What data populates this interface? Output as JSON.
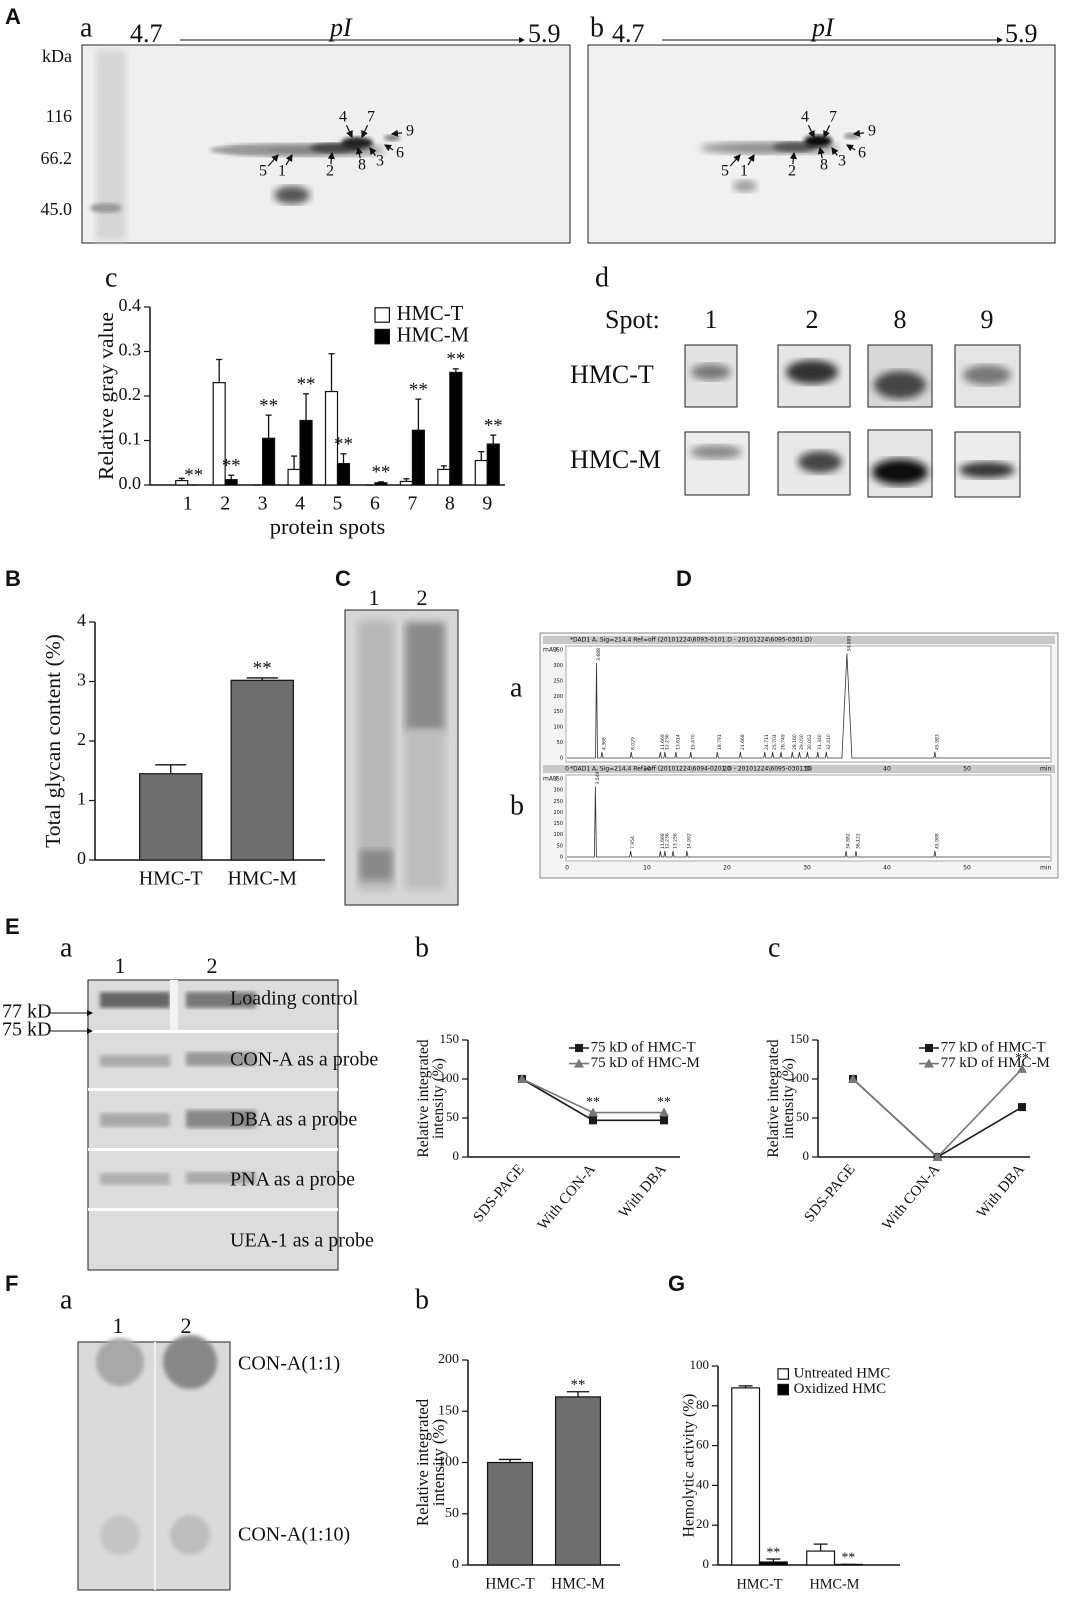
{
  "chart_data": [
    {
      "type": "bar",
      "categories": [
        "1",
        "2",
        "3",
        "4",
        "5",
        "6",
        "7",
        "8",
        "9"
      ],
      "series": [
        {
          "name": "HMC-T",
          "color": "#ffffff",
          "values": [
            0.01,
            0.23,
            0,
            0.035,
            0.21,
            0,
            0.008,
            0.035,
            0.055
          ],
          "errors": [
            0.005,
            0.052,
            0,
            0.03,
            0.085,
            0,
            0.006,
            0.008,
            0.02
          ]
        },
        {
          "name": "HMC-M",
          "color": "#000000",
          "values": [
            0,
            0.012,
            0.105,
            0.145,
            0.048,
            0.005,
            0.123,
            0.253,
            0.092
          ],
          "errors": [
            0,
            0.01,
            0.052,
            0.06,
            0.022,
            0.002,
            0.07,
            0.008,
            0.02
          ]
        }
      ],
      "ylim": [
        0,
        0.4
      ],
      "yticks": [
        {
          "value": 0,
          "label": "0.0"
        },
        0.1,
        0.2,
        0.3,
        0.4
      ],
      "ylabel": "Relative gray value",
      "xlabel": "protein spots",
      "legend": "upper right",
      "annotations": [
        {
          "text": "**",
          "category": "1",
          "series": "HMC-M"
        },
        {
          "text": "**",
          "category": "2",
          "series": "HMC-M"
        },
        {
          "text": "**",
          "category": "3",
          "series": "HMC-M"
        },
        {
          "text": "**",
          "category": "4",
          "series": "HMC-M"
        },
        {
          "text": "**",
          "category": "5",
          "series": "HMC-M"
        },
        {
          "text": "**",
          "category": "6",
          "series": "HMC-M"
        },
        {
          "text": "**",
          "category": "7",
          "series": "HMC-M"
        },
        {
          "text": "**",
          "category": "8",
          "series": "HMC-M"
        },
        {
          "text": "**",
          "category": "9",
          "series": "HMC-M"
        }
      ]
    },
    {
      "type": "bar",
      "categories": [
        "HMC-T",
        "HMC-M"
      ],
      "values": [
        1.45,
        3.02
      ],
      "errors": [
        0.15,
        0.04
      ],
      "color": "#6e6e6e",
      "ylim": [
        0,
        4
      ],
      "yticks": [
        0,
        1,
        2,
        3,
        4
      ],
      "ylabel": "Total glycan content (%)",
      "annotations": [
        {
          "text": "**",
          "category": "HMC-M"
        }
      ]
    },
    {
      "type": "line",
      "categories": [
        "SDS-PAGE",
        "With CON-A",
        "With DBA"
      ],
      "series": [
        {
          "name": "75 kD of HMC-T",
          "color": "#1a1a1a",
          "marker": "square",
          "values": [
            100,
            47,
            47
          ]
        },
        {
          "name": "75 kD of HMC-M",
          "color": "#777777",
          "marker": "triangle",
          "values": [
            100,
            57,
            57
          ]
        }
      ],
      "ylim": [
        0,
        150
      ],
      "yticks": [
        0,
        50,
        100,
        150
      ],
      "ylabel": [
        "Relative integrated",
        "intensity (%)"
      ],
      "legend": "upper right",
      "annotations": [
        {
          "text": "**",
          "category": "With CON-A",
          "series": "75 kD of HMC-M"
        },
        {
          "text": "**",
          "category": "With DBA",
          "series": "75 kD of HMC-M"
        }
      ]
    },
    {
      "type": "line",
      "categories": [
        "SDS-PAGE",
        "With CON-A",
        "With DBA"
      ],
      "series": [
        {
          "name": "77 kD of HMC-T",
          "color": "#1a1a1a",
          "marker": "square",
          "values": [
            100,
            0,
            64
          ]
        },
        {
          "name": "77 kD of HMC-M",
          "color": "#777777",
          "marker": "triangle",
          "values": [
            100,
            0,
            113
          ]
        }
      ],
      "ylim": [
        0,
        150
      ],
      "yticks": [
        0,
        50,
        100,
        150
      ],
      "ylabel": [
        "Relative integrated",
        "intensity (%)"
      ],
      "legend": "upper right",
      "annotations": [
        {
          "text": "**",
          "category": "With DBA",
          "series": "77 kD of HMC-M"
        }
      ]
    },
    {
      "type": "bar",
      "categories": [
        "HMC-T",
        "HMC-M"
      ],
      "values": [
        100,
        164
      ],
      "errors": [
        3,
        5
      ],
      "color": "#6e6e6e",
      "ylim": [
        0,
        200
      ],
      "yticks": [
        0,
        50,
        100,
        150,
        200
      ],
      "ylabel": [
        "Relative integrated",
        "intensity (%)"
      ],
      "annotations": [
        {
          "text": "**",
          "category": "HMC-M"
        }
      ]
    },
    {
      "type": "bar",
      "categories": [
        "HMC-T",
        "HMC-M"
      ],
      "series": [
        {
          "name": "Untreated HMC",
          "color": "#ffffff",
          "values": [
            89,
            7
          ],
          "errors": [
            1,
            3.5
          ]
        },
        {
          "name": "Oxidized HMC",
          "color": "#000000",
          "values": [
            1.5,
            0.3
          ],
          "errors": [
            1.5,
            0
          ]
        }
      ],
      "ylim": [
        0,
        100
      ],
      "yticks": [
        0,
        20,
        40,
        60,
        80,
        100
      ],
      "ylabel": "Hemolytic activity (%)",
      "legend": "upper right",
      "annotations": [
        {
          "text": "**",
          "category": "HMC-T",
          "series": "Oxidized HMC"
        },
        {
          "text": "**",
          "category": "HMC-M",
          "series": "Oxidized HMC"
        }
      ]
    }
  ],
  "figure": {
    "panel_labels": [
      "A",
      "B",
      "C",
      "D",
      "E",
      "F",
      "G"
    ],
    "A": {
      "sub": [
        "a",
        "b",
        "c",
        "d"
      ],
      "pI_start": "4.7",
      "pI_end": "5.9",
      "pI": "pI",
      "kda": [
        "kDa",
        "116",
        "66.2",
        "45.0"
      ],
      "spots": [
        "4",
        "7",
        "9",
        "6",
        "3",
        "8",
        "2",
        "1",
        "5"
      ],
      "d": {
        "spot": "Spot:",
        "spots": [
          "1",
          "2",
          "8",
          "9"
        ],
        "rows": [
          "HMC-T",
          "HMC-M"
        ]
      }
    },
    "C": {
      "lanes": [
        "1",
        "2"
      ]
    },
    "D": {
      "sub": [
        "a",
        "b"
      ],
      "headers": [
        "*DAD1 A, Sig=214,4 Ref=off (20101224\\6093-0101.D - 20101224\\6095-0301.D)",
        "*DAD1 A, Sig=214,4 Ref=off (20101224\\6094-0201.D - 20101224\\6095-0301.D)"
      ],
      "unit_y": "mAU",
      "unit_x": "min",
      "yticks": [
        "350",
        "300",
        "250",
        "200",
        "150",
        "100",
        "50",
        "0"
      ],
      "xticks": [
        "0",
        "10",
        "20",
        "30",
        "40",
        "50"
      ],
      "peaks_a": [
        "3.688",
        "4.368",
        "8.029",
        "11.669",
        "12.236",
        "13.614",
        "15.470",
        "18.791",
        "21.668",
        "24.711",
        "25.704",
        "26.749",
        "28.160",
        "29.050",
        "30.052",
        "31.340",
        "32.410",
        "34.989",
        "45.983"
      ],
      "peaks_b": [
        "3.549",
        "7.954",
        "11.668",
        "12.236",
        "13.256",
        "14.992",
        "34.882",
        "36.122",
        "45.988"
      ]
    },
    "E": {
      "sub": [
        "a",
        "b",
        "c"
      ],
      "lanes": [
        "1",
        "2"
      ],
      "markers": [
        "77 kD",
        "75 kD"
      ],
      "probes": [
        "Loading control",
        "CON-A as a probe",
        "DBA as a probe",
        "PNA as a probe",
        "UEA-1 as a probe"
      ]
    },
    "F": {
      "sub": [
        "a",
        "b"
      ],
      "lanes": [
        "1",
        "2"
      ],
      "dilutions": [
        "CON-A(1:1)",
        "CON-A(1:10)"
      ]
    }
  }
}
